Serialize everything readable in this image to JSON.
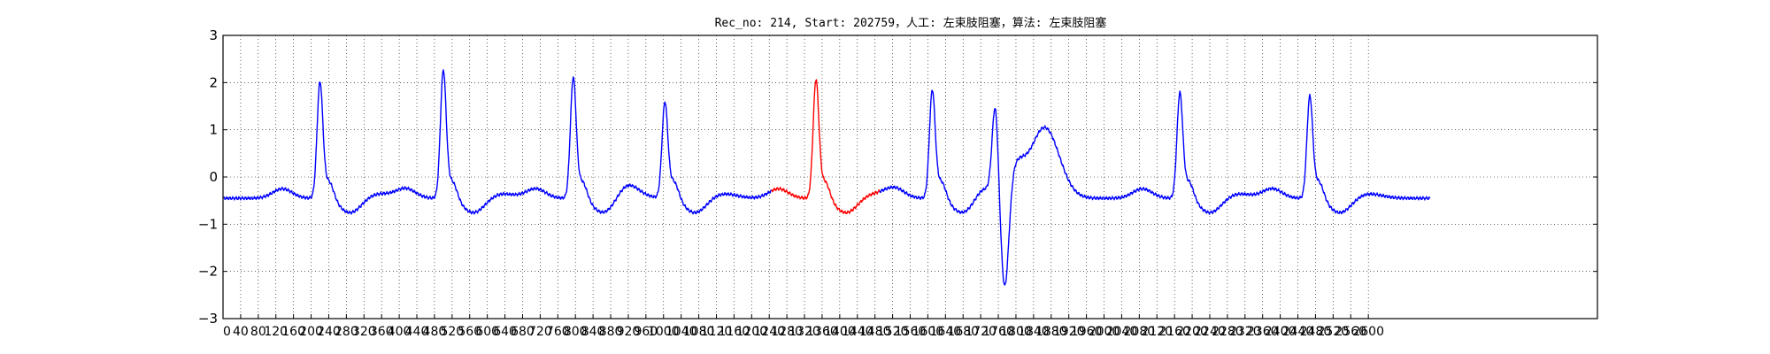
{
  "chart_data": {
    "type": "line",
    "title": "Rec_no: 214, Start: 202759，人工: 左束肢阻塞，算法: 左束肢阻塞",
    "xlabel": "",
    "ylabel": "",
    "xlim": [
      0,
      3120
    ],
    "ylim": [
      -3,
      3
    ],
    "grid": true,
    "yticks": [
      "3",
      "2",
      "1",
      "0",
      "−1",
      "−2",
      "−3"
    ],
    "xticks": [
      "0",
      "40",
      "80",
      "120",
      "160",
      "200",
      "240",
      "280",
      "320",
      "360",
      "400",
      "440",
      "480",
      "520",
      "560",
      "600",
      "640",
      "680",
      "720",
      "760",
      "800",
      "840",
      "880",
      "920",
      "960",
      "1000",
      "1040",
      "1080",
      "1120",
      "1160",
      "1200",
      "1240",
      "1280",
      "1320",
      "1360",
      "1400",
      "1440",
      "1480",
      "1520",
      "1560",
      "1600",
      "1640",
      "1680",
      "1720",
      "1760",
      "1800",
      "1840",
      "1880",
      "1920",
      "1960",
      "2000",
      "2040",
      "2080",
      "2120",
      "2160",
      "2200",
      "2240",
      "2280",
      "2320",
      "2360",
      "2400",
      "2440",
      "2480",
      "2520",
      "2560",
      "2600"
    ],
    "series_colors": {
      "normal": "#0000ff",
      "highlight": "#ff0000"
    },
    "beats": [
      {
        "peak": 220,
        "amp": 2.05,
        "kind": "R",
        "color": "normal"
      },
      {
        "peak": 500,
        "amp": 2.3,
        "kind": "R",
        "color": "normal"
      },
      {
        "peak": 795,
        "amp": 2.15,
        "kind": "R",
        "color": "normal"
      },
      {
        "peak": 1003,
        "amp": 1.62,
        "kind": "R",
        "color": "normal"
      },
      {
        "peak": 1346,
        "amp": 2.1,
        "kind": "R",
        "color": "highlight"
      },
      {
        "peak": 1610,
        "amp": 1.88,
        "kind": "R",
        "color": "normal"
      },
      {
        "peak": 1753,
        "amp": 1.5,
        "kind": "PVC",
        "color": "normal"
      },
      {
        "peak": 2172,
        "amp": 1.82,
        "kind": "R",
        "color": "normal"
      },
      {
        "peak": 2467,
        "amp": 1.75,
        "kind": "R",
        "color": "normal"
      }
    ],
    "highlight_range": [
      1245,
      1490
    ],
    "x_end": 2740
  }
}
